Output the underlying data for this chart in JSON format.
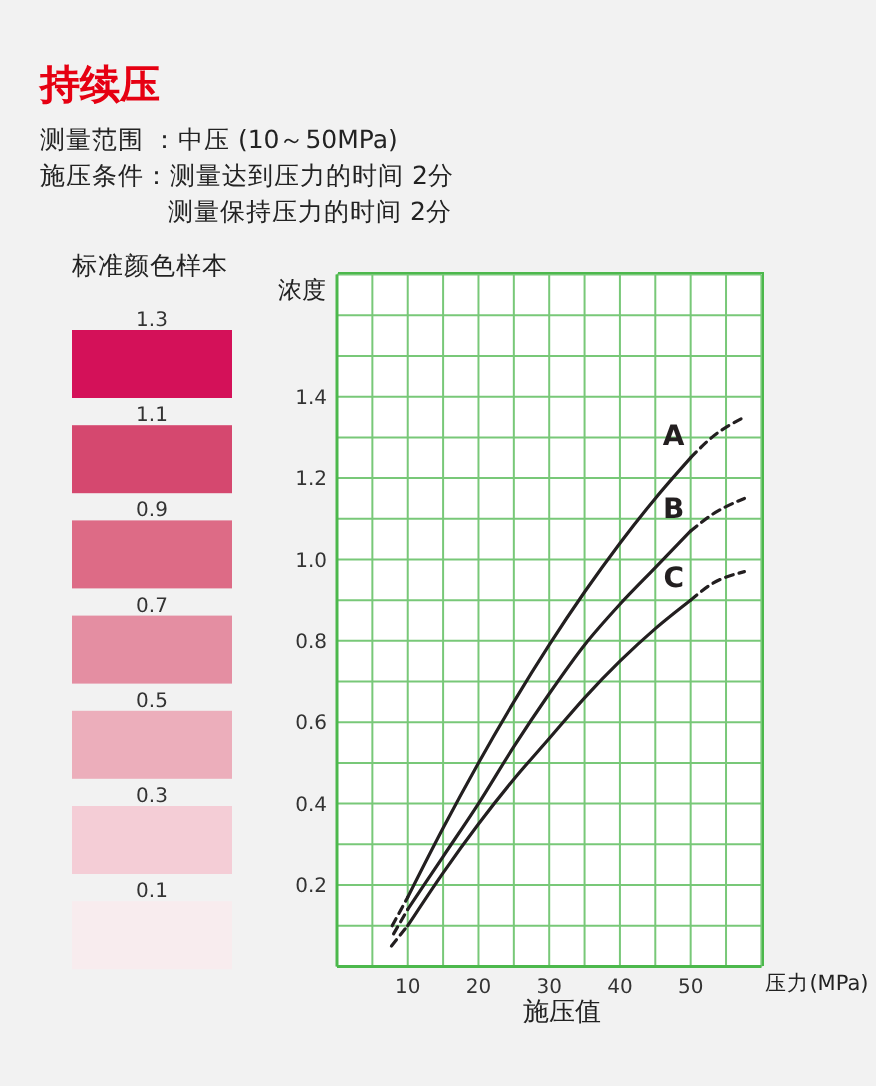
{
  "chart_data": [
    {
      "type": "other",
      "title": "标准颜色样本",
      "values": [
        1.3,
        1.1,
        0.9,
        0.7,
        0.5,
        0.3,
        0.1
      ],
      "colors": [
        "#d41159",
        "#d5486f",
        "#dd6b86",
        "#e48ea2",
        "#ecaebb",
        "#f4cdd6",
        "#f8ecee"
      ],
      "data_labels": true
    },
    {
      "type": "line",
      "title": "持续压",
      "subtitle": "测量范围 ：中压 (10～50MPa)\n施压条件：测量达到压力的时间 2分",
      "xlabel": "施压值",
      "ylabel": "浓度",
      "annotations": [
        "测量保持压力的时间 2分",
        "压力(MPa)"
      ],
      "xlim": [
        0,
        60
      ],
      "ylim": [
        0,
        1.7
      ],
      "xticks": [
        {
          "value": 5,
          "label": null
        },
        10,
        {
          "value": 15,
          "label": null
        },
        20,
        {
          "value": 25,
          "label": null
        },
        30,
        {
          "value": 35,
          "label": null
        },
        40,
        {
          "value": 45,
          "label": null
        },
        50,
        {
          "value": 55,
          "label": null
        }
      ],
      "yticks": [
        {
          "value": 0.1,
          "label": null
        },
        0.2,
        {
          "value": 0.3,
          "label": null
        },
        0.4,
        {
          "value": 0.5,
          "label": null
        },
        0.6,
        {
          "value": 0.7,
          "label": null
        },
        0.8,
        {
          "value": 0.9,
          "label": null
        },
        {
          "value": 1,
          "label": "1.0"
        },
        {
          "value": 1.1,
          "label": null
        },
        1.2,
        {
          "value": 1.3,
          "label": null
        },
        1.4,
        {
          "value": 1.5,
          "label": null
        },
        {
          "value": 1.6,
          "label": null
        }
      ],
      "grid": true,
      "series": [
        {
          "name": "A",
          "color": "#231f20",
          "x": [
            10,
            15,
            20,
            25,
            30,
            35,
            40,
            45,
            50
          ],
          "values": [
            0.17,
            0.34,
            0.5,
            0.65,
            0.79,
            0.92,
            1.04,
            1.15,
            1.25
          ]
        },
        {
          "color": "#231f20",
          "line_style": "dashed",
          "x": [
            7.8,
            10
          ],
          "values": [
            0.1,
            0.17
          ]
        },
        {
          "color": "#231f20",
          "line_style": "dashed",
          "x": [
            50,
            53,
            57.6
          ],
          "values": [
            1.25,
            1.3,
            1.35
          ]
        },
        {
          "name": "B",
          "color": "#231f20",
          "x": [
            10,
            15,
            20,
            25,
            30,
            35,
            40,
            45,
            50
          ],
          "values": [
            0.14,
            0.27,
            0.4,
            0.54,
            0.67,
            0.79,
            0.89,
            0.98,
            1.07
          ]
        },
        {
          "color": "#231f20",
          "line_style": "dashed",
          "x": [
            8,
            10
          ],
          "values": [
            0.08,
            0.14
          ]
        },
        {
          "color": "#231f20",
          "line_style": "dashed",
          "x": [
            50,
            53,
            57.6
          ],
          "values": [
            1.07,
            1.11,
            1.15
          ]
        },
        {
          "name": "C",
          "color": "#231f20",
          "x": [
            10,
            15,
            20,
            25,
            30,
            35,
            40,
            45,
            50
          ],
          "values": [
            0.1,
            0.23,
            0.35,
            0.46,
            0.56,
            0.66,
            0.75,
            0.83,
            0.9
          ]
        },
        {
          "color": "#231f20",
          "line_style": "dashed",
          "x": [
            7.7,
            10
          ],
          "values": [
            0.05,
            0.1
          ]
        },
        {
          "color": "#231f20",
          "line_style": "dashed",
          "x": [
            50,
            53,
            57.6
          ],
          "values": [
            0.9,
            0.94,
            0.97
          ]
        }
      ]
    }
  ]
}
